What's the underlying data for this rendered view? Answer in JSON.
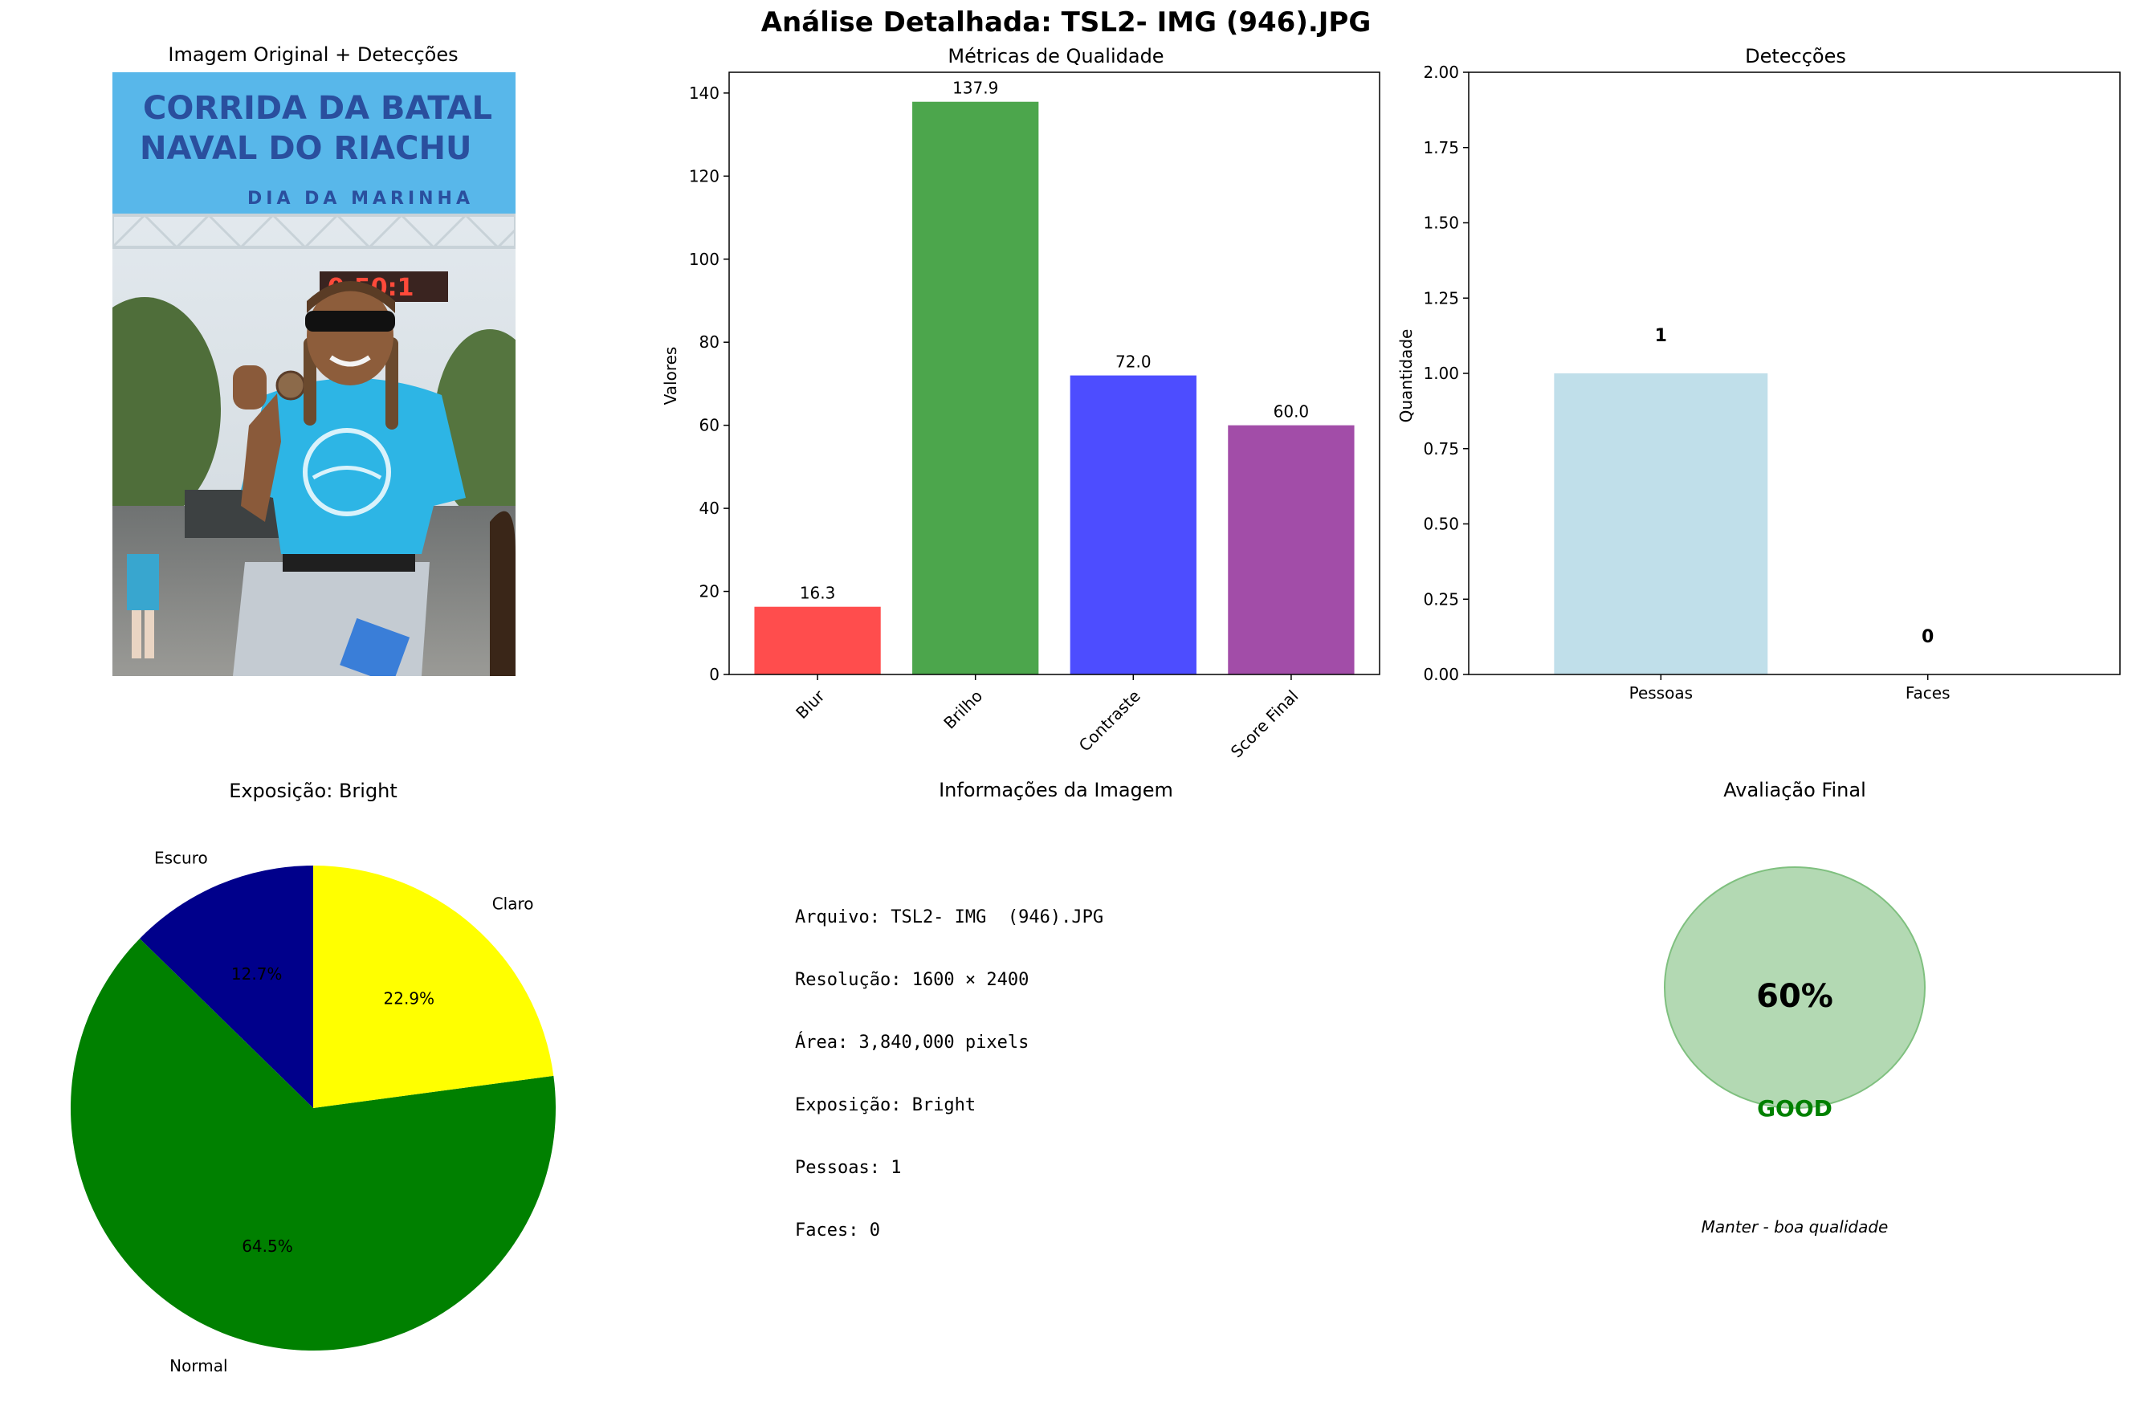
{
  "suptitle": "Análise Detalhada: TSL2- IMG  (946).JPG",
  "panels": {
    "image": {
      "title": "Imagem Original + Detecções",
      "banner_line1": "CORRIDA DA BATAL",
      "banner_line2": "NAVAL DO RIACHU",
      "banner_line3": "DIA DA MARINHA",
      "clock": "0:50:1"
    },
    "info": {
      "title": "Informações da Imagem",
      "lines": [
        "Arquivo: TSL2- IMG  (946).JPG",
        "Resolução: 1600 × 2400",
        "Área: 3,840,000 pixels",
        "Exposição: Bright",
        "Pessoas: 1",
        "Faces: 0"
      ]
    },
    "verdict": {
      "title": "Avaliação Final",
      "score": "60%",
      "label": "GOOD",
      "note": "Manter - boa qualidade",
      "colors": {
        "circle": "#b3d9b3",
        "label": "#008000"
      }
    }
  },
  "chart_data": [
    {
      "type": "bar",
      "title": "Métricas de Qualidade",
      "xlabel": "",
      "ylabel": "Valores",
      "categories": [
        "Blur",
        "Brilho",
        "Contraste",
        "Score Final"
      ],
      "values": [
        16.3,
        137.9,
        72.0,
        60.0
      ],
      "data_labels": [
        "16.3",
        "137.9",
        "72.0",
        "60.0"
      ],
      "colors": [
        "#ff4d4d",
        "#4ca64c",
        "#4d4dff",
        "#a24da8"
      ],
      "ylim": [
        0,
        145
      ],
      "yticks": [
        0,
        20,
        40,
        60,
        80,
        100,
        120,
        140
      ],
      "grid": false
    },
    {
      "type": "bar",
      "title": "Detecções",
      "xlabel": "",
      "ylabel": "Quantidade",
      "categories": [
        "Pessoas",
        "Faces"
      ],
      "values": [
        1,
        0
      ],
      "data_labels": [
        "1",
        "0"
      ],
      "colors": [
        "#c0dfea",
        "#c0dfea"
      ],
      "ylim": [
        0,
        2
      ],
      "yticks": [
        "0.00",
        "0.25",
        "0.50",
        "0.75",
        "1.00",
        "1.25",
        "1.50",
        "1.75",
        "2.00"
      ],
      "grid": false
    },
    {
      "type": "pie",
      "title": "Exposição: Bright",
      "labels": [
        "Claro",
        "Normal",
        "Escuro"
      ],
      "values": [
        22.9,
        64.5,
        12.7
      ],
      "pct_labels": [
        "22.9%",
        "64.5%",
        "12.7%"
      ],
      "colors": [
        "#ffff00",
        "#008000",
        "#00008b"
      ]
    }
  ]
}
